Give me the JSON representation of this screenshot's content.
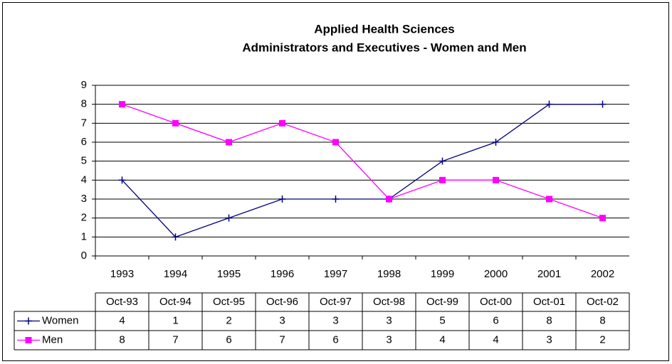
{
  "chart_data": {
    "type": "line",
    "title": "Applied Health Sciences",
    "subtitle": "Administrators and Executives - Women and Men",
    "categories": [
      "1993",
      "1994",
      "1995",
      "1996",
      "1997",
      "1998",
      "1999",
      "2000",
      "2001",
      "2002"
    ],
    "table_header": [
      "Oct-93",
      "Oct-94",
      "Oct-95",
      "Oct-96",
      "Oct-97",
      "Oct-98",
      "Oct-99",
      "Oct-00",
      "Oct-01",
      "Oct-02"
    ],
    "series": [
      {
        "name": "Women",
        "color": "#000080",
        "marker": "plus",
        "values": [
          4,
          1,
          2,
          3,
          3,
          3,
          5,
          6,
          8,
          8
        ]
      },
      {
        "name": "Men",
        "color": "#ff00ff",
        "marker": "square",
        "values": [
          8,
          7,
          6,
          7,
          6,
          3,
          4,
          4,
          3,
          2
        ]
      }
    ],
    "ylim": [
      0,
      9
    ],
    "yticks": [
      0,
      1,
      2,
      3,
      4,
      5,
      6,
      7,
      8,
      9
    ],
    "grid": true
  }
}
